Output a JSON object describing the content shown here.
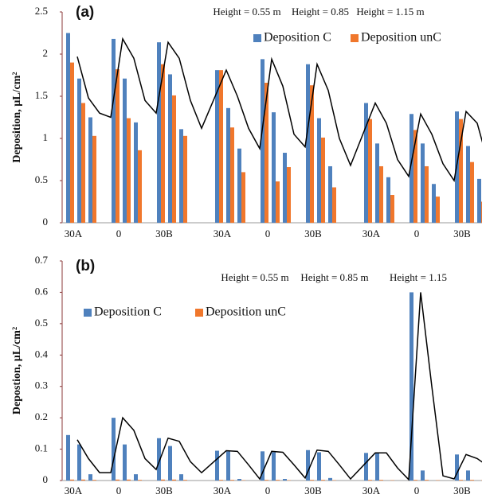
{
  "chart_data": [
    {
      "type": "bar",
      "panel_label": "(a)",
      "ylabel": "Deposition, µL/cm²",
      "annotations": [
        "Height = 0.55 m",
        "Height = 0.85",
        "Height = 1.15 m"
      ],
      "legend_loc": "upper right",
      "categories": [
        "30A",
        null,
        null,
        null,
        "0",
        null,
        null,
        null,
        "30B",
        null,
        null,
        null,
        "30A",
        null,
        null,
        null,
        "0",
        null,
        null,
        null,
        "30B",
        null,
        null,
        null,
        "30A",
        null,
        null,
        null,
        "0",
        null,
        null,
        null,
        "30B",
        null,
        null,
        null
      ],
      "ylim": [
        0,
        2.5
      ],
      "yticks": [
        0,
        0.5,
        1,
        1.5,
        2,
        2.5
      ],
      "series": [
        {
          "name": "Deposition C",
          "color": "#4f81bd",
          "values": [
            2.25,
            1.71,
            1.25,
            null,
            2.18,
            1.71,
            1.19,
            null,
            2.14,
            1.76,
            1.11,
            null,
            1.81,
            1.36,
            0.88,
            null,
            1.94,
            1.31,
            0.83,
            null,
            1.88,
            1.24,
            0.67,
            null,
            1.42,
            0.94,
            0.54,
            null,
            1.29,
            0.94,
            0.46,
            null,
            1.32,
            0.91,
            0.52,
            null
          ]
        },
        {
          "name": "Deposition unC",
          "color": "#f0772c",
          "values": [
            1.9,
            1.42,
            1.03,
            null,
            1.82,
            1.24,
            0.86,
            null,
            1.88,
            1.51,
            1.03,
            null,
            1.81,
            1.13,
            0.6,
            null,
            1.66,
            0.49,
            0.66,
            null,
            1.63,
            1.01,
            0.42,
            null,
            1.23,
            0.67,
            0.33,
            null,
            1.1,
            0.67,
            0.31,
            null,
            1.23,
            0.72,
            0.25,
            null
          ]
        },
        {
          "type": "line",
          "color": "#000000",
          "values": [
            1.97,
            1.48,
            1.3,
            1.25,
            2.18,
            1.95,
            1.45,
            1.3,
            2.14,
            1.95,
            1.45,
            1.12,
            1.81,
            1.5,
            1.12,
            0.88,
            1.94,
            1.62,
            1.05,
            0.9,
            1.88,
            1.57,
            1.0,
            0.68,
            1.42,
            1.18,
            0.75,
            0.55,
            1.29,
            1.05,
            0.7,
            0.5,
            1.32,
            1.18,
            0.7,
            null
          ]
        }
      ]
    },
    {
      "type": "bar",
      "panel_label": "(b)",
      "ylabel": "Depostion, µL/cm²",
      "annotations": [
        "Height = 0.55 m",
        "Height = 0.85 m",
        "Height = 1.15"
      ],
      "legend_loc": "upper left",
      "categories": [
        "30A",
        null,
        null,
        null,
        "0",
        null,
        null,
        null,
        "30B",
        null,
        null,
        null,
        "30A",
        null,
        null,
        null,
        "0",
        null,
        null,
        null,
        "30B",
        null,
        null,
        null,
        "30A",
        null,
        null,
        null,
        "0",
        null,
        null,
        null,
        "30B",
        null,
        null,
        null
      ],
      "ylim": [
        0,
        0.7
      ],
      "yticks": [
        0,
        0.1,
        0.2,
        0.3,
        0.4,
        0.5,
        0.6,
        0.7
      ],
      "series": [
        {
          "name": "Deposition C",
          "color": "#4f81bd",
          "values": [
            0.145,
            0.115,
            0.02,
            null,
            0.2,
            0.115,
            0.02,
            null,
            0.135,
            0.11,
            0.02,
            null,
            0.095,
            0.093,
            0.005,
            null,
            0.093,
            0.09,
            0.005,
            null,
            0.097,
            0.09,
            0.008,
            null,
            0.088,
            0.088,
            0,
            null,
            0.6,
            0.032,
            0,
            null,
            0.083,
            0.032,
            0,
            null
          ]
        },
        {
          "name": "Deposition unC",
          "color": "#f0772c",
          "values": [
            0.003,
            0.003,
            0.002,
            null,
            0.003,
            0.003,
            0.002,
            null,
            0.003,
            0.003,
            0.002,
            null,
            0.002,
            0.002,
            0.001,
            null,
            0.002,
            0.002,
            0.001,
            null,
            0.002,
            0.002,
            0.001,
            null,
            0.002,
            0.002,
            0.001,
            null,
            0.002,
            0.002,
            0.001,
            null,
            0.002,
            0.002,
            0.001,
            null
          ]
        },
        {
          "type": "line",
          "color": "#000000",
          "values": [
            0.13,
            0.07,
            0.025,
            0.025,
            0.2,
            0.16,
            0.07,
            0.035,
            0.135,
            0.125,
            0.06,
            0.025,
            0.095,
            0.093,
            0.05,
            0.005,
            0.093,
            0.09,
            0.05,
            0.008,
            0.097,
            0.093,
            0.05,
            0.005,
            0.088,
            0.088,
            0.04,
            0.003,
            0.6,
            0.3,
            0.015,
            0.005,
            0.083,
            0.07,
            0.045,
            null
          ]
        }
      ]
    }
  ]
}
